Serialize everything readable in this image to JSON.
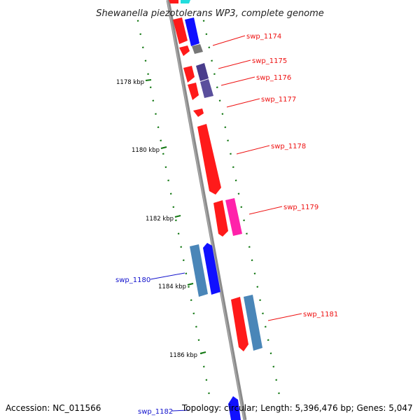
{
  "title": "Shewanella piezotolerans WP3, complete genome",
  "footer": {
    "accession": "Accession: NC_011566",
    "summary": "Topology: circular; Length: 5,396,476 bp; Genes: 5,047"
  },
  "kbp_ticks": [
    "1178 kbp",
    "1180 kbp",
    "1182 kbp",
    "1184 kbp",
    "1186 kbp"
  ],
  "genes": [
    {
      "name": "swp_1174",
      "strand": "forward",
      "color": "#ee1111"
    },
    {
      "name": "swp_1175",
      "strand": "forward",
      "color": "#ee1111"
    },
    {
      "name": "swp_1176",
      "strand": "forward",
      "color": "#ee1111"
    },
    {
      "name": "swp_1177",
      "strand": "forward",
      "color": "#ee1111"
    },
    {
      "name": "swp_1178",
      "strand": "forward",
      "color": "#ee1111"
    },
    {
      "name": "swp_1179",
      "strand": "forward",
      "color": "#ee1111"
    },
    {
      "name": "swp_1180",
      "strand": "reverse",
      "color": "#1111cc"
    },
    {
      "name": "swp_1181",
      "strand": "forward",
      "color": "#ee1111"
    },
    {
      "name": "swp_1182",
      "strand": "reverse",
      "color": "#1111cc"
    }
  ],
  "colors": {
    "backbone": "#888888",
    "forward_cds": "#ff1a1a",
    "reverse_cds": "#1010ff",
    "magenta_feature": "#ff22aa",
    "steel_feature": "#4a86b8",
    "purple_feature": "#4a3d8c",
    "grey_feature": "#777777",
    "cyan_feature": "#22dddd",
    "gc_dots": "#117711"
  }
}
